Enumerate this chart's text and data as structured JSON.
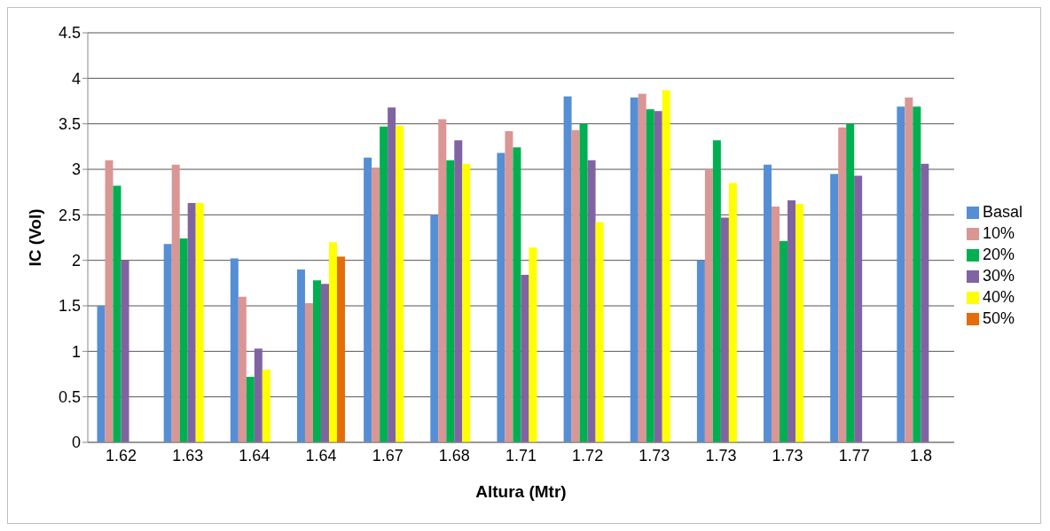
{
  "chart_data": {
    "type": "bar",
    "xlabel": "Altura (Mtr)",
    "ylabel": "IC (Vol)",
    "categories": [
      "1.62",
      "1.63",
      "1.64",
      "1.64",
      "1.67",
      "1.68",
      "1.71",
      "1.72",
      "1.73",
      "1.73",
      "1.73",
      "1.77",
      "1.8"
    ],
    "series": [
      {
        "name": "Basal",
        "color": "#558ed5",
        "values": [
          1.5,
          2.18,
          2.02,
          1.9,
          3.13,
          2.5,
          3.18,
          3.8,
          3.79,
          2.0,
          3.05,
          2.95,
          3.69
        ]
      },
      {
        "name": "10%",
        "color": "#d99694",
        "values": [
          3.1,
          3.05,
          1.6,
          1.53,
          3.02,
          3.55,
          3.42,
          3.43,
          3.83,
          3.0,
          2.59,
          3.46,
          3.79
        ]
      },
      {
        "name": "20%",
        "color": "#00b050",
        "values": [
          2.82,
          2.24,
          0.72,
          1.78,
          3.47,
          3.1,
          3.24,
          3.5,
          3.66,
          3.32,
          2.21,
          3.5,
          3.69
        ]
      },
      {
        "name": "30%",
        "color": "#8064a2",
        "values": [
          2.0,
          2.63,
          1.03,
          1.74,
          3.68,
          3.32,
          1.84,
          3.1,
          3.64,
          2.47,
          2.66,
          2.93,
          3.06
        ]
      },
      {
        "name": "40%",
        "color": "#ffff00",
        "values": [
          null,
          2.63,
          0.8,
          2.2,
          3.48,
          3.06,
          2.14,
          2.42,
          3.87,
          2.85,
          2.62,
          null,
          null
        ]
      },
      {
        "name": "50%",
        "color": "#e46c0a",
        "values": [
          null,
          null,
          null,
          2.04,
          null,
          null,
          null,
          null,
          null,
          null,
          null,
          null,
          null
        ]
      }
    ],
    "ylim": [
      0,
      4.5
    ],
    "yticks": [
      0,
      0.5,
      1,
      1.5,
      2,
      2.5,
      3,
      3.5,
      4,
      4.5
    ],
    "grid": "y",
    "legend": "right"
  }
}
